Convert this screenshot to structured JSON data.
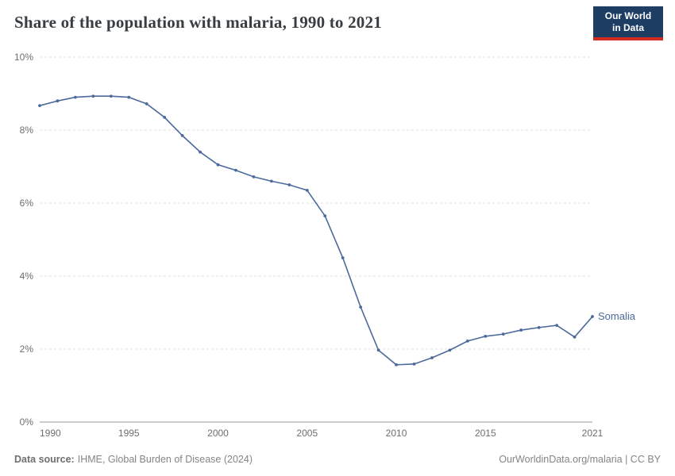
{
  "header": {
    "title": "Share of the population with malaria, 1990 to 2021",
    "logo": {
      "line1": "Our World",
      "line2": "in Data",
      "bg_color": "#1d3d63",
      "accent_color": "#d42b21",
      "text_color": "#ffffff"
    }
  },
  "footer": {
    "datasource_label": "Data source:",
    "datasource_text": "IHME, Global Burden of Disease (2024)",
    "credit": "OurWorldinData.org/malaria | CC BY"
  },
  "chart_data": {
    "type": "line",
    "title": "Share of the population with malaria, 1990 to 2021",
    "xlabel": "",
    "ylabel": "",
    "xlim": [
      1990,
      2021
    ],
    "ylim": [
      0,
      10
    ],
    "grid": true,
    "gridline_color": "#dcdcdc",
    "legend_position": "end-of-line",
    "xticks": [
      {
        "value": 1990,
        "label": "1990"
      },
      {
        "value": 1995,
        "label": "1995"
      },
      {
        "value": 2000,
        "label": "2000"
      },
      {
        "value": 2005,
        "label": "2005"
      },
      {
        "value": 2010,
        "label": "2010"
      },
      {
        "value": 2015,
        "label": "2015"
      },
      {
        "value": 2021,
        "label": "2021"
      }
    ],
    "yticks": [
      {
        "value": 0,
        "label": "0%"
      },
      {
        "value": 2,
        "label": "2%"
      },
      {
        "value": 4,
        "label": "4%"
      },
      {
        "value": 6,
        "label": "6%"
      },
      {
        "value": 8,
        "label": "8%"
      },
      {
        "value": 10,
        "label": "10%"
      }
    ],
    "series": [
      {
        "name": "Somalia",
        "color": "#4c6a9c",
        "x": [
          1990,
          1991,
          1992,
          1993,
          1994,
          1995,
          1996,
          1997,
          1998,
          1999,
          2000,
          2001,
          2002,
          2003,
          2004,
          2005,
          2006,
          2007,
          2008,
          2009,
          2010,
          2011,
          2012,
          2013,
          2014,
          2015,
          2016,
          2017,
          2018,
          2019,
          2020,
          2021
        ],
        "values": [
          8.67,
          8.8,
          8.9,
          8.93,
          8.93,
          8.9,
          8.72,
          8.35,
          7.85,
          7.4,
          7.05,
          6.9,
          6.72,
          6.6,
          6.5,
          6.35,
          5.65,
          4.5,
          3.15,
          1.97,
          1.57,
          1.59,
          1.76,
          1.97,
          2.22,
          2.35,
          2.41,
          2.52,
          2.59,
          2.65,
          2.33,
          2.89
        ]
      }
    ]
  }
}
